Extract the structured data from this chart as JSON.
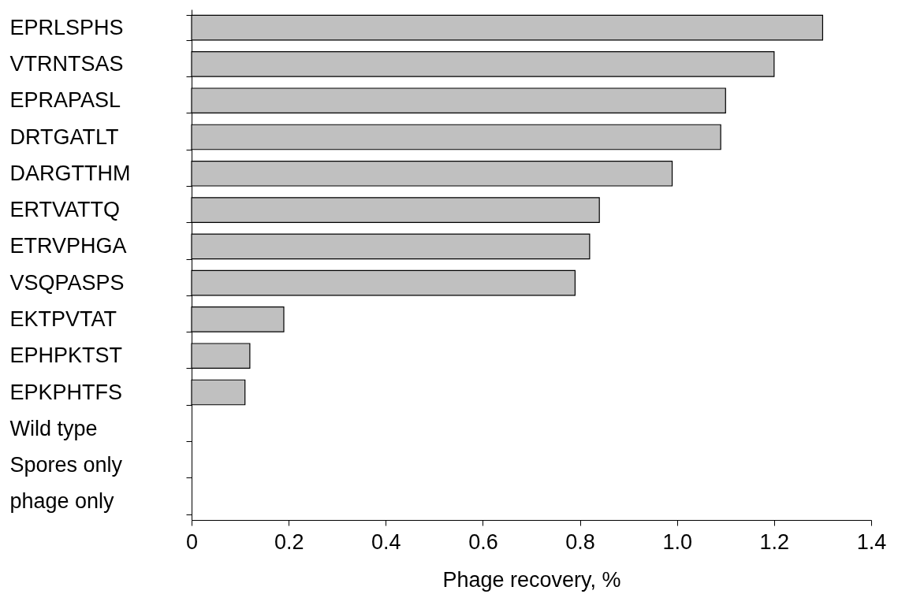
{
  "chart_data": {
    "type": "bar",
    "orientation": "horizontal",
    "xlabel": "Phage recovery, %",
    "categories": [
      "EPRLSPHS",
      "VTRNTSAS",
      "EPRAPASL",
      "DRTGATLT",
      "DARGTTHM",
      "ERTVATTQ",
      "ETRVPHGA",
      "VSQPASPS",
      "EKTPVTAT",
      "EPHPKTST",
      "EPKPHTFS",
      "Wild type",
      "Spores only",
      "phage only"
    ],
    "values": [
      1.3,
      1.2,
      1.1,
      1.09,
      0.99,
      0.84,
      0.82,
      0.79,
      0.19,
      0.12,
      0.11,
      null,
      null,
      null
    ],
    "color": "#c0c0c0",
    "xlim": [
      0,
      1.4
    ],
    "xticks": [
      0,
      {
        "value": 0.2,
        "label": "0.2"
      },
      {
        "value": 0.4,
        "label": "0.4"
      },
      {
        "value": 0.6,
        "label": "0.6"
      },
      {
        "value": 0.8,
        "label": "0.8"
      },
      {
        "value": 1.0,
        "label": "1.0"
      },
      {
        "value": 1.2,
        "label": "1.2"
      },
      {
        "value": 1.4,
        "label": "1.4"
      }
    ],
    "grid": false
  }
}
